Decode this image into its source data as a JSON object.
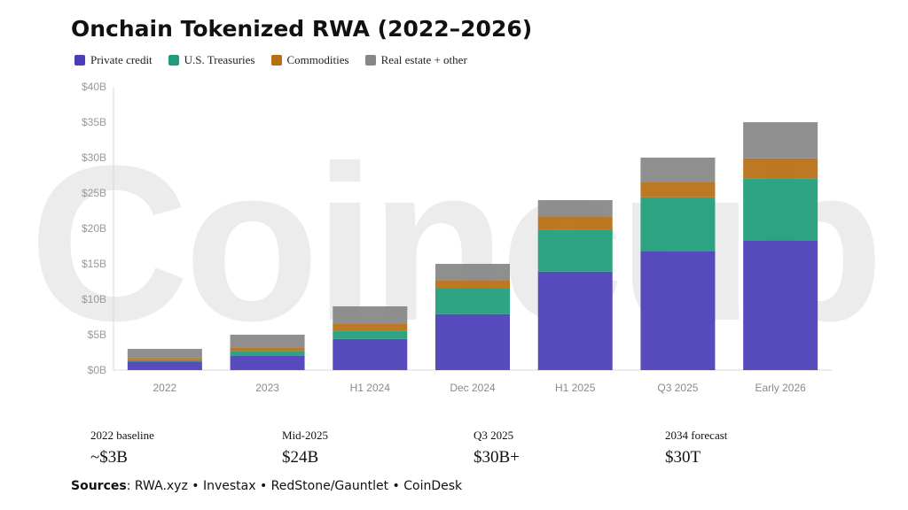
{
  "title": "Onchain Tokenized RWA (2022–2026)",
  "watermark": "Coincub",
  "colors": {
    "private_credit": "#4b3db8",
    "treasuries": "#1f9d7a",
    "commodities": "#b86e12",
    "real_estate": "#878787"
  },
  "chart_data": {
    "type": "bar",
    "stacked": true,
    "categories": [
      "2022",
      "2023",
      "H1 2024",
      "Dec 2024",
      "H1 2025",
      "Q3 2025",
      "Early 2026"
    ],
    "series": [
      {
        "name": "Private credit",
        "color": "#4b3db8",
        "values": [
          1.2,
          2.0,
          4.4,
          7.9,
          13.9,
          16.8,
          18.3
        ]
      },
      {
        "name": "U.S. Treasuries",
        "color": "#1f9d7a",
        "values": [
          0.2,
          0.7,
          1.2,
          3.6,
          5.9,
          7.6,
          8.8
        ]
      },
      {
        "name": "Commodities",
        "color": "#b86e12",
        "values": [
          0.3,
          0.5,
          0.9,
          1.2,
          1.9,
          2.1,
          2.8
        ]
      },
      {
        "name": "Real estate + other",
        "color": "#878787",
        "values": [
          1.3,
          1.8,
          2.5,
          2.3,
          2.3,
          3.5,
          5.1
        ]
      }
    ],
    "yticks": [
      "$0B",
      "$5B",
      "$10B",
      "$15B",
      "$20B",
      "$25B",
      "$30B",
      "$35B",
      "$40B"
    ],
    "ylim": [
      0,
      40
    ],
    "grid": false,
    "legend": "top-left"
  },
  "stats": [
    {
      "label": "2022 baseline",
      "value": "~$3B"
    },
    {
      "label": "Mid-2025",
      "value": "$24B"
    },
    {
      "label": "Q3 2025",
      "value": "$30B+"
    },
    {
      "label": "2034 forecast",
      "value": "$30T"
    }
  ],
  "sources": {
    "label": "Sources",
    "text": ": RWA.xyz • Investax • RedStone/Gauntlet • CoinDesk"
  }
}
